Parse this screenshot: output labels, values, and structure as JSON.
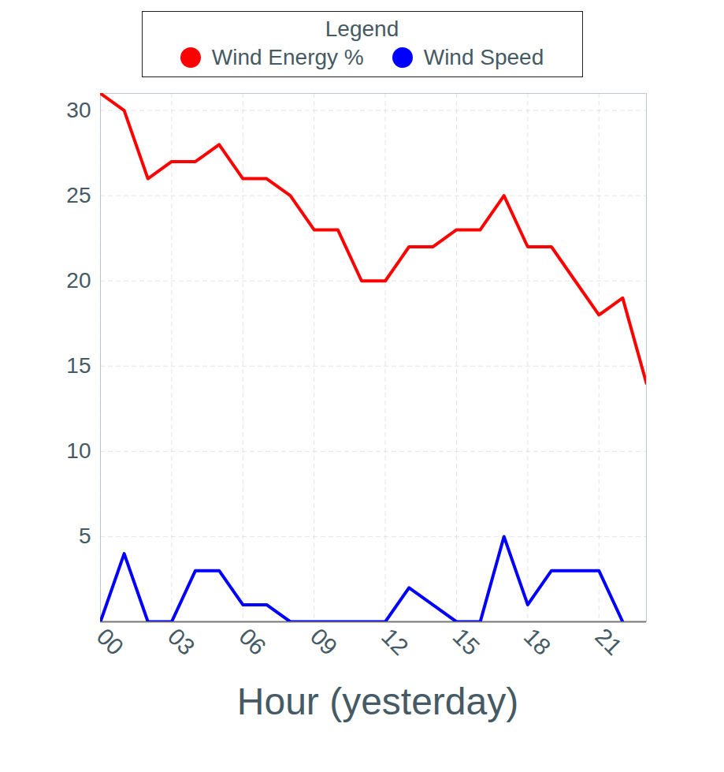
{
  "chart_data": {
    "type": "line",
    "x": [
      0,
      1,
      2,
      3,
      4,
      5,
      6,
      7,
      8,
      9,
      10,
      11,
      12,
      13,
      14,
      15,
      16,
      17,
      18,
      19,
      20,
      21,
      22,
      23
    ],
    "series": [
      {
        "name": "Wind Energy %",
        "color": "#ff0000",
        "values": [
          31,
          30,
          26,
          27,
          27,
          28,
          26,
          26,
          25,
          23,
          23,
          20,
          20,
          22,
          22,
          23,
          23,
          25,
          22,
          22,
          20,
          18,
          19,
          14
        ]
      },
      {
        "name": "Wind Speed",
        "color": "#0000ff",
        "values": [
          0,
          4,
          0,
          0,
          3,
          3,
          1,
          1,
          0,
          0,
          0,
          0,
          0,
          2,
          1,
          0,
          0,
          5,
          1,
          3,
          3,
          3,
          0,
          null
        ]
      }
    ],
    "x_label": "Hour (yesterday)",
    "legend_title": "Legend",
    "xlim": [
      0,
      23
    ],
    "xticks": [
      {
        "value": 0,
        "label": "00"
      },
      {
        "value": 3,
        "label": "03"
      },
      {
        "value": 6,
        "label": "06"
      },
      {
        "value": 9,
        "label": "09"
      },
      {
        "value": 12,
        "label": "12"
      },
      {
        "value": 15,
        "label": "15"
      },
      {
        "value": 18,
        "label": "18"
      },
      {
        "value": 21,
        "label": "21"
      }
    ],
    "ylim": [
      0,
      31
    ],
    "yticks": [
      5,
      10,
      15,
      20,
      25,
      30
    ],
    "grid": true,
    "legend": "top"
  }
}
